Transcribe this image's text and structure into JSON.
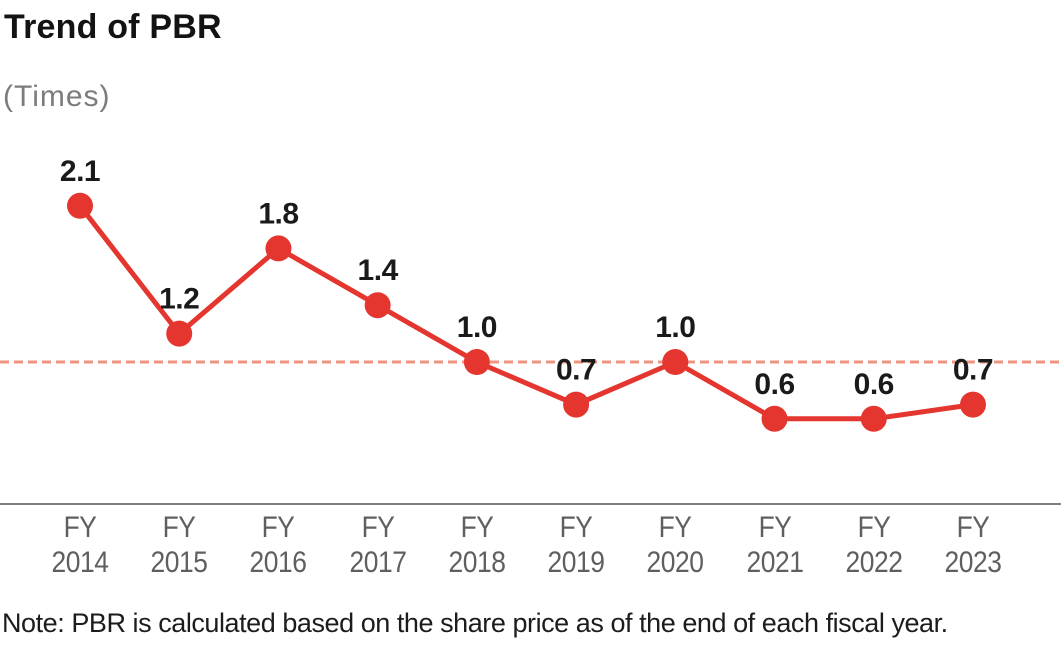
{
  "page": {
    "title": "Trend of PBR",
    "unit_label": "(Times)",
    "note": "Note: PBR is calculated based on the share price as of the end of each fiscal year."
  },
  "chart_data": {
    "type": "line",
    "title": "Trend of PBR",
    "unit": "Times",
    "categories": [
      "FY 2014",
      "FY 2015",
      "FY 2016",
      "FY 2017",
      "FY 2018",
      "FY 2019",
      "FY 2020",
      "FY 2021",
      "FY 2022",
      "FY 2023"
    ],
    "category_prefix": "FY",
    "category_years": [
      "2014",
      "2015",
      "2016",
      "2017",
      "2018",
      "2019",
      "2020",
      "2021",
      "2022",
      "2023"
    ],
    "values": [
      2.1,
      1.2,
      1.8,
      1.4,
      1.0,
      0.7,
      1.0,
      0.6,
      0.6,
      0.7
    ],
    "point_labels": [
      "2.1",
      "1.2",
      "1.8",
      "1.4",
      "1.0",
      "0.7",
      "1.0",
      "0.6",
      "0.6",
      "0.7"
    ],
    "reference_line": {
      "value": 1.0,
      "style": "dashed",
      "color": "#ef9480"
    },
    "ylim": [
      0,
      2.6
    ],
    "grid": false,
    "legend": false,
    "annotations": "value shown above each marker",
    "colors": {
      "series": "#e4362e",
      "axis": "#807e7e",
      "tick_label": "#615e5e",
      "value_label": "#1a1a1a"
    }
  }
}
